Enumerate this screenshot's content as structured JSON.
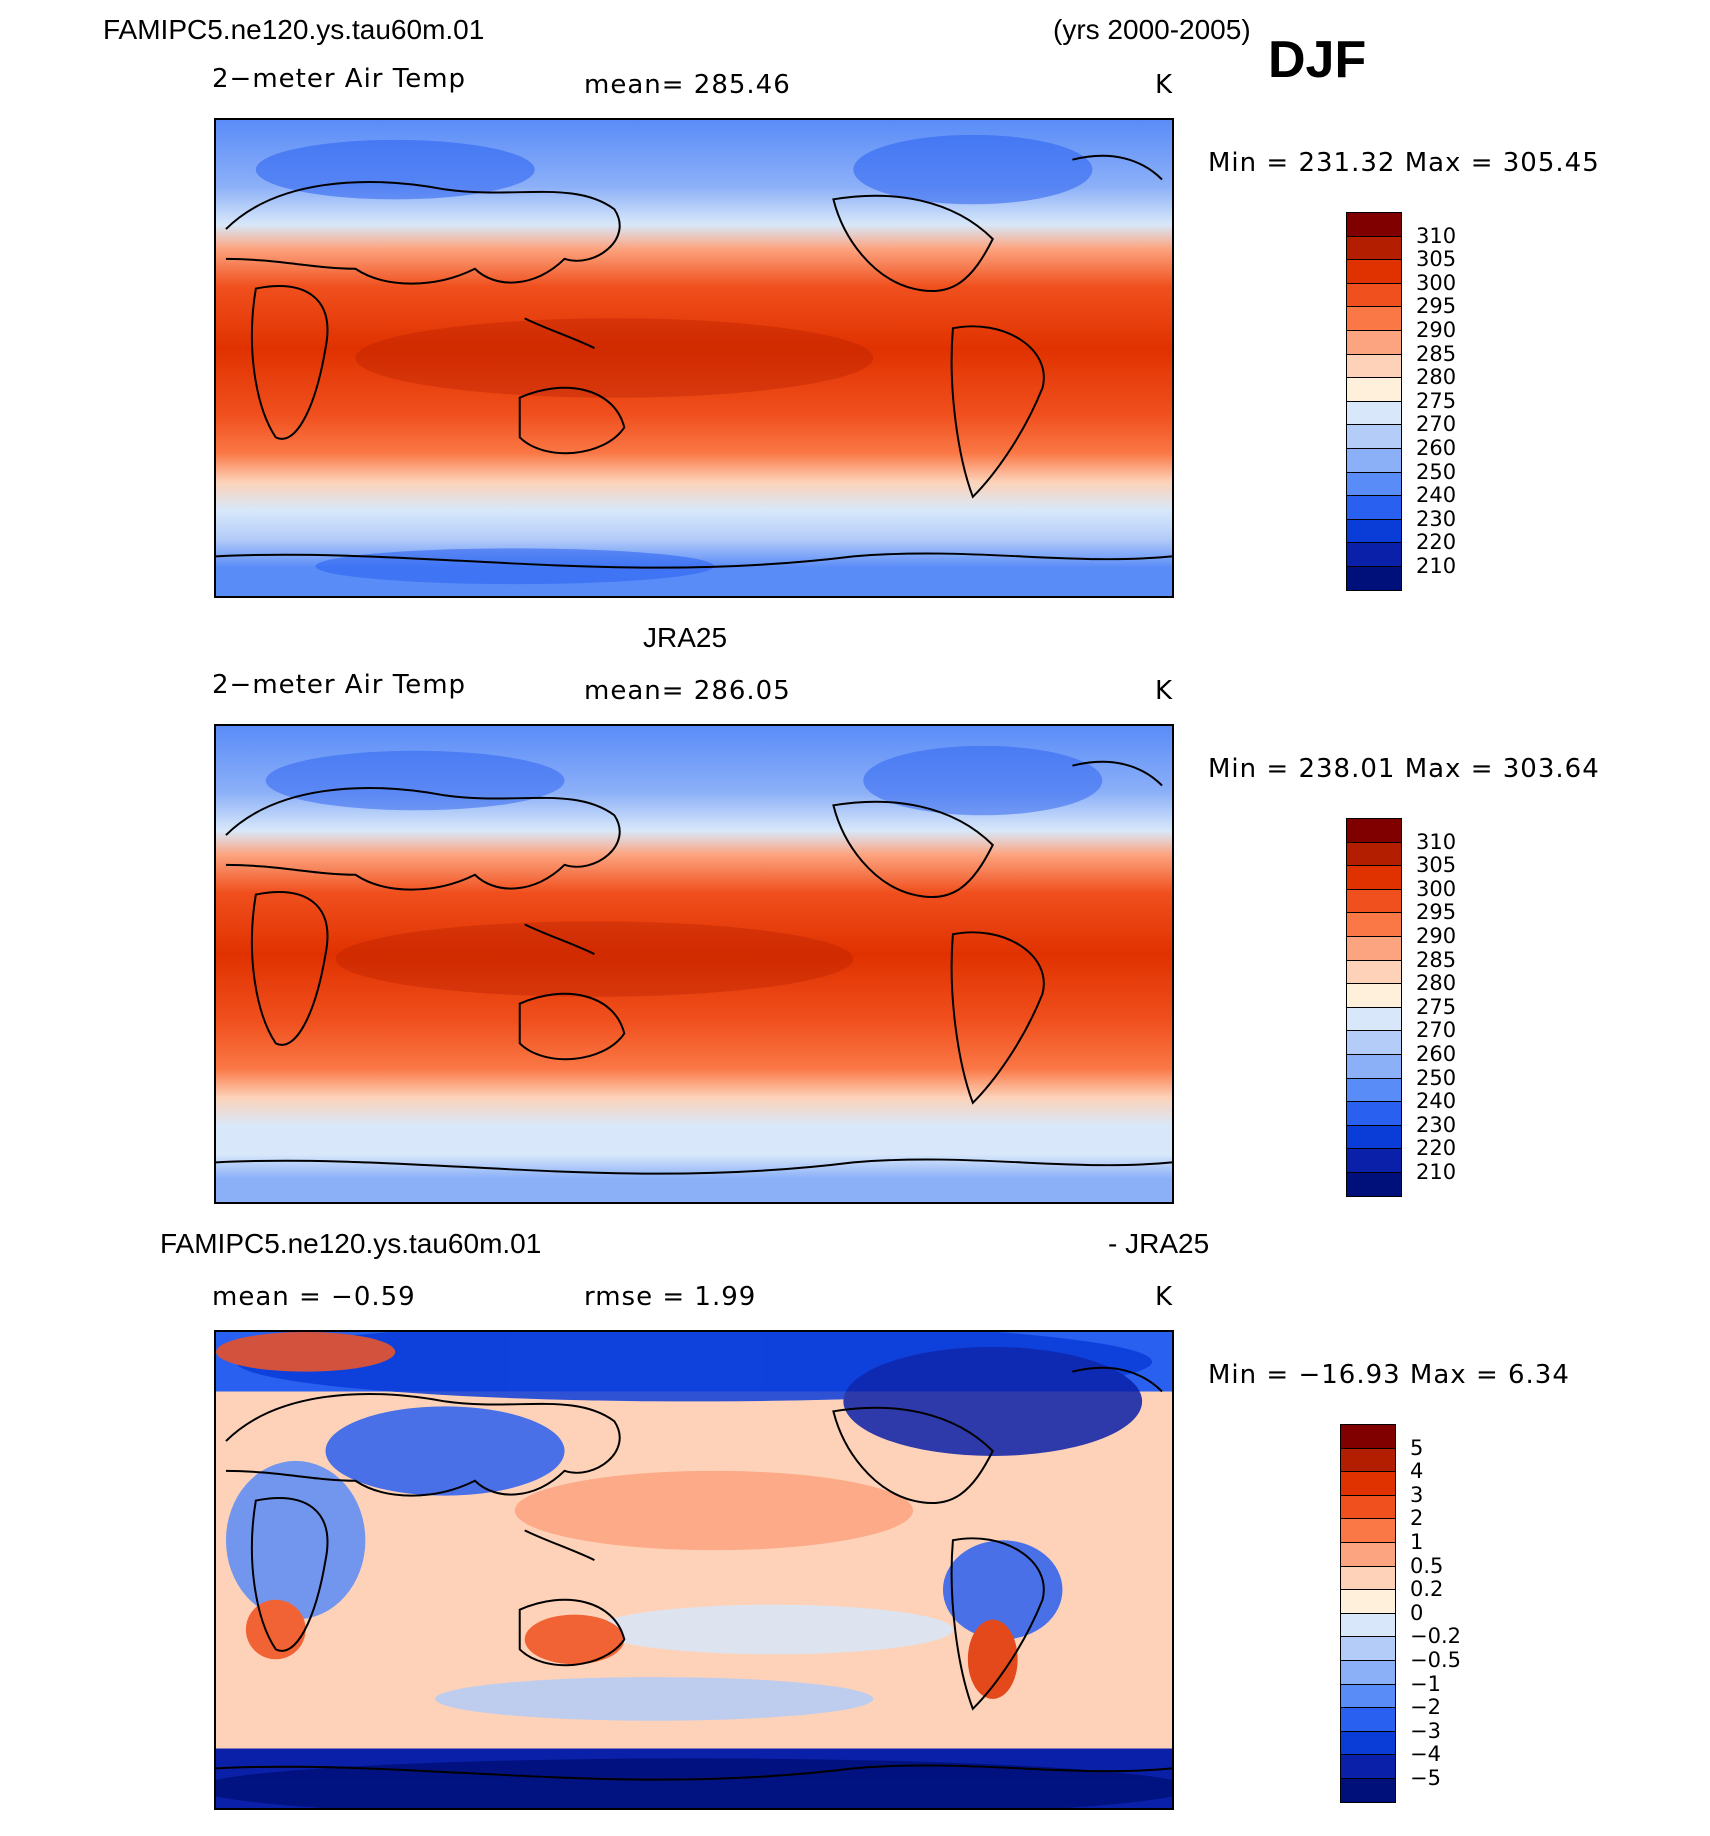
{
  "header": {
    "case_name": "FAMIPC5.ne120.ys.tau60m.01",
    "years": "(yrs 2000-2005)",
    "season": "DJF"
  },
  "chart_data": [
    {
      "type": "heatmap",
      "title": "FAMIPC5.ne120.ys.tau60m.01",
      "variable": "2−meter Air Temp",
      "mean_label": "mean=  285.46",
      "units": "K",
      "minmax_label": "Min  =  231.32  Max  =  305.45",
      "min": 231.32,
      "max": 305.45,
      "mean": 285.46,
      "levels": [
        "310",
        "305",
        "300",
        "295",
        "290",
        "285",
        "280",
        "275",
        "270",
        "260",
        "250",
        "240",
        "230",
        "220",
        "210"
      ],
      "colors": [
        "#800000",
        "#b41e00",
        "#e03200",
        "#f0501e",
        "#fa7846",
        "#fca480",
        "#fdd2b8",
        "#fff0dc",
        "#d8e8fa",
        "#b4ccf8",
        "#8cb0f8",
        "#5a8cf8",
        "#2a60f0",
        "#0a3cd8",
        "#0a20a8",
        "#00107a"
      ]
    },
    {
      "type": "heatmap",
      "title": "JRA25",
      "variable": "2−meter Air Temp",
      "mean_label": "mean=  286.05",
      "units": "K",
      "minmax_label": "Min  =  238.01  Max  =  303.64",
      "min": 238.01,
      "max": 303.64,
      "mean": 286.05,
      "levels": [
        "310",
        "305",
        "300",
        "295",
        "290",
        "285",
        "280",
        "275",
        "270",
        "260",
        "250",
        "240",
        "230",
        "220",
        "210"
      ],
      "colors": [
        "#800000",
        "#b41e00",
        "#e03200",
        "#f0501e",
        "#fa7846",
        "#fca480",
        "#fdd2b8",
        "#fff0dc",
        "#d8e8fa",
        "#b4ccf8",
        "#8cb0f8",
        "#5a8cf8",
        "#2a60f0",
        "#0a3cd8",
        "#0a20a8",
        "#00107a"
      ]
    },
    {
      "type": "heatmap",
      "title": "FAMIPC5.ne120.ys.tau60m.01",
      "title_right": "- JRA25",
      "variable": "",
      "mean_label": "mean  =    −0.59",
      "rmse_label": "rmse  =      1.99",
      "units": "K",
      "minmax_label": "Min  =  −16.93  Max  =      6.34",
      "min": -16.93,
      "max": 6.34,
      "mean": -0.59,
      "rmse": 1.99,
      "levels": [
        "5",
        "4",
        "3",
        "2",
        "1",
        "0.5",
        "0.2",
        "0",
        "−0.2",
        "−0.5",
        "−1",
        "−2",
        "−3",
        "−4",
        "−5"
      ],
      "colors": [
        "#800000",
        "#b41e00",
        "#e03200",
        "#f0501e",
        "#fa7846",
        "#fca480",
        "#fdd2b8",
        "#fff0dc",
        "#d8e8fa",
        "#b4ccf8",
        "#8cb0f8",
        "#5a8cf8",
        "#2a60f0",
        "#0a3cd8",
        "#0a20a8",
        "#00107a"
      ]
    }
  ]
}
